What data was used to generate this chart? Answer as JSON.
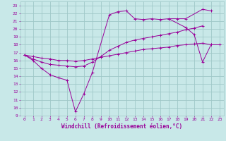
{
  "background_color": "#c8e8e8",
  "grid_color": "#a0c8c8",
  "line_color": "#990099",
  "xlabel": "Windchill (Refroidissement éolien,°C)",
  "xlim": [
    -0.5,
    23.5
  ],
  "ylim": [
    9,
    23.5
  ],
  "yticks": [
    9,
    10,
    11,
    12,
    13,
    14,
    15,
    16,
    17,
    18,
    19,
    20,
    21,
    22,
    23
  ],
  "xticks": [
    0,
    1,
    2,
    3,
    4,
    5,
    6,
    7,
    8,
    9,
    10,
    11,
    12,
    13,
    14,
    15,
    16,
    17,
    18,
    19,
    20,
    21,
    22,
    23
  ],
  "series1_x": [
    0,
    1,
    2,
    3,
    4,
    5,
    6,
    7,
    8,
    10,
    11,
    12,
    13,
    14,
    15,
    16,
    17,
    19,
    20,
    21,
    22
  ],
  "series1_y": [
    16.7,
    16.0,
    15.0,
    14.2,
    13.8,
    13.5,
    9.5,
    11.8,
    14.5,
    21.8,
    22.2,
    22.3,
    21.3,
    21.2,
    21.3,
    21.2,
    21.3,
    20.2,
    19.3,
    15.8,
    18.0
  ],
  "series1_breaks": [
    9,
    18
  ],
  "series2_x": [
    0,
    1,
    2,
    3,
    4,
    5,
    6,
    7,
    8,
    9,
    10,
    11,
    12,
    13,
    14,
    15,
    16,
    17,
    18,
    19,
    20,
    21
  ],
  "series2_y": [
    16.7,
    16.2,
    15.8,
    15.5,
    15.4,
    15.3,
    15.2,
    15.3,
    15.8,
    16.5,
    17.3,
    17.8,
    18.3,
    18.6,
    18.8,
    19.0,
    19.2,
    19.4,
    19.6,
    19.9,
    20.1,
    20.4
  ],
  "series3_x": [
    0,
    1,
    2,
    3,
    4,
    5,
    6,
    7,
    8,
    9,
    10,
    11,
    12,
    13,
    14,
    15,
    16,
    17,
    18,
    19,
    20,
    21,
    22,
    23
  ],
  "series3_y": [
    16.7,
    16.5,
    16.3,
    16.2,
    16.0,
    16.0,
    15.9,
    16.0,
    16.2,
    16.4,
    16.6,
    16.8,
    17.0,
    17.2,
    17.4,
    17.5,
    17.6,
    17.7,
    17.9,
    18.0,
    18.1,
    18.2,
    18.0,
    18.0
  ],
  "series4_x": [
    17,
    18,
    19,
    21,
    22
  ],
  "series4_y": [
    21.3,
    21.3,
    21.3,
    22.5,
    22.3
  ],
  "series4_breaks": [
    20
  ],
  "marker": "+"
}
